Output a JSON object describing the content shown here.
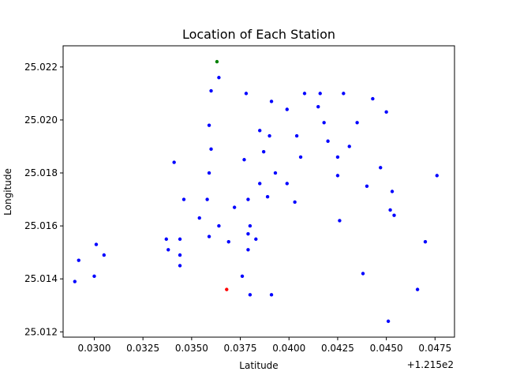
{
  "chart_data": {
    "type": "scatter",
    "title": "Location of Each Station",
    "xlabel": "Latitude",
    "ylabel": "Longitude",
    "x_offset_label": "+1.215e2",
    "xlim": [
      0.0284,
      0.0485
    ],
    "ylim": [
      25.0118,
      25.0228
    ],
    "xticks": [
      0.03,
      0.0325,
      0.035,
      0.0375,
      0.04,
      0.0425,
      0.045,
      0.0475
    ],
    "xtick_labels": [
      "0.0300",
      "0.0325",
      "0.0350",
      "0.0375",
      "0.0400",
      "0.0425",
      "0.0450",
      "0.0475"
    ],
    "yticks": [
      25.012,
      25.014,
      25.016,
      25.018,
      25.02,
      25.022
    ],
    "ytick_labels": [
      "25.012",
      "25.014",
      "25.016",
      "25.018",
      "25.020",
      "25.022"
    ],
    "grid": false,
    "colors": {
      "default": "#0000ff",
      "highlight_green": "#008000",
      "highlight_red": "#ff0000"
    },
    "series": [
      {
        "color": "#0000ff",
        "points": [
          [
            0.029,
            25.0139
          ],
          [
            0.0292,
            25.0147
          ],
          [
            0.03,
            25.0141
          ],
          [
            0.0301,
            25.0153
          ],
          [
            0.0305,
            25.0149
          ],
          [
            0.0337,
            25.0155
          ],
          [
            0.0338,
            25.0151
          ],
          [
            0.0341,
            25.0184
          ],
          [
            0.0344,
            25.0155
          ],
          [
            0.0344,
            25.0149
          ],
          [
            0.0344,
            25.0145
          ],
          [
            0.0346,
            25.017
          ],
          [
            0.0354,
            25.0163
          ],
          [
            0.0358,
            25.017
          ],
          [
            0.0359,
            25.0198
          ],
          [
            0.0359,
            25.018
          ],
          [
            0.0359,
            25.0156
          ],
          [
            0.036,
            25.0211
          ],
          [
            0.036,
            25.0189
          ],
          [
            0.0364,
            25.0216
          ],
          [
            0.0364,
            25.016
          ],
          [
            0.0369,
            25.0154
          ],
          [
            0.0372,
            25.0167
          ],
          [
            0.0376,
            25.0141
          ],
          [
            0.0377,
            25.0185
          ],
          [
            0.0378,
            25.021
          ],
          [
            0.0379,
            25.017
          ],
          [
            0.0379,
            25.0157
          ],
          [
            0.0379,
            25.0151
          ],
          [
            0.038,
            25.016
          ],
          [
            0.038,
            25.0134
          ],
          [
            0.0383,
            25.0155
          ],
          [
            0.0385,
            25.0196
          ],
          [
            0.0385,
            25.0176
          ],
          [
            0.0387,
            25.0188
          ],
          [
            0.0389,
            25.0171
          ],
          [
            0.039,
            25.0194
          ],
          [
            0.0391,
            25.0207
          ],
          [
            0.0391,
            25.0134
          ],
          [
            0.0393,
            25.018
          ],
          [
            0.0399,
            25.0204
          ],
          [
            0.0399,
            25.0176
          ],
          [
            0.0403,
            25.0169
          ],
          [
            0.0404,
            25.0194
          ],
          [
            0.0406,
            25.0186
          ],
          [
            0.0408,
            25.021
          ],
          [
            0.0415,
            25.0205
          ],
          [
            0.0416,
            25.021
          ],
          [
            0.0418,
            25.0199
          ],
          [
            0.042,
            25.0192
          ],
          [
            0.0425,
            25.0186
          ],
          [
            0.0425,
            25.0179
          ],
          [
            0.0426,
            25.0162
          ],
          [
            0.0428,
            25.021
          ],
          [
            0.0431,
            25.019
          ],
          [
            0.0435,
            25.0199
          ],
          [
            0.0438,
            25.0142
          ],
          [
            0.044,
            25.0175
          ],
          [
            0.0443,
            25.0208
          ],
          [
            0.0447,
            25.0182
          ],
          [
            0.045,
            25.0203
          ],
          [
            0.0451,
            25.0124
          ],
          [
            0.0452,
            25.0166
          ],
          [
            0.0453,
            25.0173
          ],
          [
            0.0454,
            25.0164
          ],
          [
            0.0466,
            25.0136
          ],
          [
            0.047,
            25.0154
          ],
          [
            0.0476,
            25.0179
          ]
        ]
      },
      {
        "color": "#008000",
        "points": [
          [
            0.0363,
            25.0222
          ]
        ]
      },
      {
        "color": "#ff0000",
        "points": [
          [
            0.0368,
            25.0136
          ]
        ]
      }
    ]
  }
}
